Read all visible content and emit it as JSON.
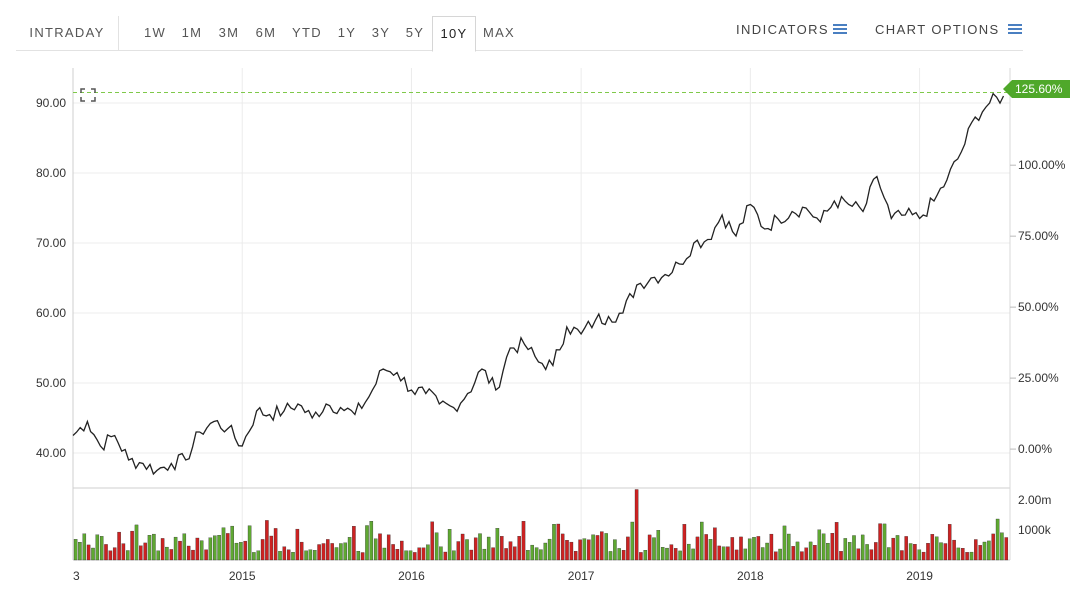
{
  "toolbar": {
    "ranges": [
      "INTRADAY",
      "1W",
      "1M",
      "3M",
      "6M",
      "YTD",
      "1Y",
      "3Y",
      "5Y",
      "10Y",
      "MAX"
    ],
    "active_range": "10Y",
    "indicators_label": "INDICATORS",
    "chart_options_label": "CHART OPTIONS"
  },
  "colors": {
    "price_line": "#222222",
    "volume_up": "#5fa832",
    "volume_down": "#cc2222",
    "reference_line": "#7fc94a",
    "badge": "#4fa82a",
    "menu_icon": "#4a7fc1"
  },
  "chart_data": {
    "type": "line",
    "x_tick_labels": [
      "3",
      "2015",
      "2016",
      "2017",
      "2018",
      "2019"
    ],
    "x_tick_dates": [
      "2014-01-01",
      "2015-01-01",
      "2016-01-01",
      "2017-01-01",
      "2018-01-01",
      "2019-01-01"
    ],
    "x_range": [
      "2014-01-01",
      "2019-07-15"
    ],
    "y_left": {
      "ticks": [
        40,
        50,
        60,
        70,
        80,
        90
      ],
      "tick_labels": [
        "40.00",
        "50.00",
        "60.00",
        "70.00",
        "80.00",
        "90.00"
      ],
      "range": [
        35,
        95
      ]
    },
    "y_right": {
      "ticks": [
        0,
        25,
        50,
        75,
        100
      ],
      "tick_labels": [
        "0.00%",
        "25.00%",
        "50.00%",
        "75.00%",
        "100.00%"
      ]
    },
    "current_change_label": "125.60%",
    "reference_price": 91.5,
    "price_series": {
      "x": [
        "2014-01-01",
        "2014-02-01",
        "2014-03-01",
        "2014-04-01",
        "2014-05-01",
        "2014-06-01",
        "2014-07-01",
        "2014-08-01",
        "2014-09-01",
        "2014-10-01",
        "2014-11-01",
        "2014-12-01",
        "2015-01-01",
        "2015-02-01",
        "2015-03-01",
        "2015-04-01",
        "2015-05-01",
        "2015-06-01",
        "2015-07-01",
        "2015-08-01",
        "2015-09-01",
        "2015-10-01",
        "2015-11-01",
        "2015-12-01",
        "2016-01-01",
        "2016-02-01",
        "2016-03-01",
        "2016-04-01",
        "2016-05-01",
        "2016-06-01",
        "2016-07-01",
        "2016-08-01",
        "2016-09-01",
        "2016-10-01",
        "2016-11-01",
        "2016-12-01",
        "2017-01-01",
        "2017-02-01",
        "2017-03-01",
        "2017-04-01",
        "2017-05-01",
        "2017-06-01",
        "2017-07-01",
        "2017-08-01",
        "2017-09-01",
        "2017-10-01",
        "2017-11-01",
        "2017-12-01",
        "2018-01-01",
        "2018-02-01",
        "2018-03-01",
        "2018-04-01",
        "2018-05-01",
        "2018-06-01",
        "2018-07-01",
        "2018-08-01",
        "2018-09-01",
        "2018-10-01",
        "2018-11-01",
        "2018-12-01",
        "2019-01-01",
        "2019-02-01",
        "2019-03-01",
        "2019-04-01",
        "2019-05-01",
        "2019-06-01",
        "2019-07-01"
      ],
      "y": [
        42.5,
        44.5,
        41.0,
        42.5,
        39.0,
        38.5,
        37.5,
        38.5,
        39.0,
        43.0,
        44.5,
        43.5,
        41.0,
        46.0,
        45.5,
        46.0,
        47.0,
        45.0,
        47.0,
        46.5,
        45.5,
        48.0,
        52.0,
        51.5,
        49.0,
        48.5,
        47.0,
        46.5,
        48.5,
        52.0,
        49.0,
        55.0,
        55.5,
        53.0,
        52.5,
        58.0,
        57.0,
        59.0,
        59.5,
        60.0,
        64.0,
        65.0,
        65.5,
        67.0,
        70.0,
        70.5,
        74.0,
        71.0,
        75.5,
        72.0,
        73.5,
        74.5,
        75.0,
        73.0,
        76.0,
        75.5,
        74.5,
        79.5,
        73.5,
        74.0,
        73.5,
        76.0,
        79.0,
        83.0,
        88.0,
        90.0,
        91.0
      ]
    },
    "volume": {
      "labels": [
        "2.00m",
        "1000k"
      ],
      "ticks": [
        2000000,
        1000000
      ],
      "range": [
        0,
        2400000
      ]
    }
  }
}
